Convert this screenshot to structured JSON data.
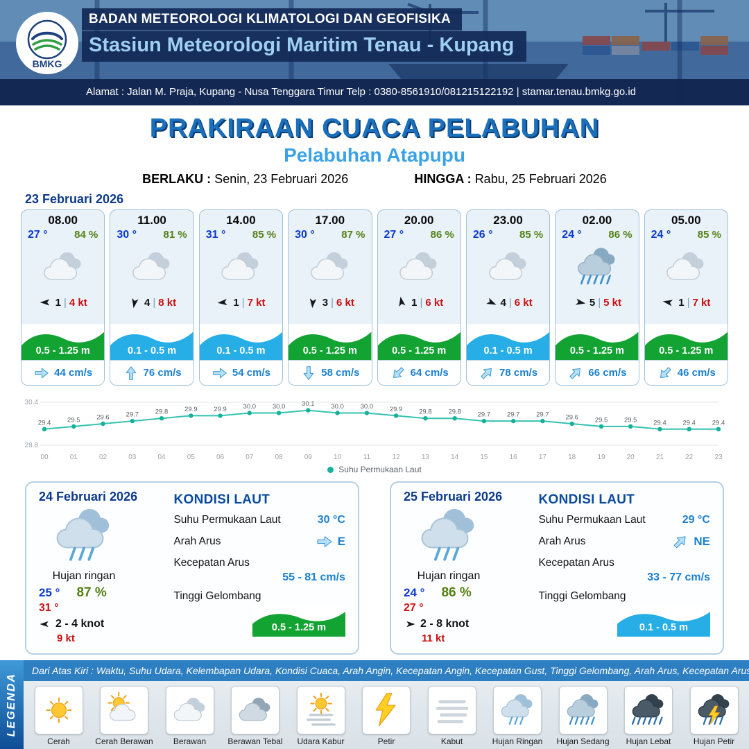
{
  "header": {
    "logo_text": "BMKG",
    "org": "BADAN METEOROLOGI KLIMATOLOGI DAN GEOFISIKA",
    "station": "Stasiun Meteorologi Maritim Tenau - Kupang",
    "address": "Alamat : Jalan M. Praja, Kupang - Nusa Tenggara Timur Telp : 0380-8561910/081215122192  | stamar.tenau.bmkg.go.id"
  },
  "title": {
    "main": "PRAKIRAAN CUACA PELABUHAN",
    "port": "Pelabuhan Atapupu",
    "valid_from_label": "BERLAKU :",
    "valid_from": "Senin, 23 Februari 2026",
    "valid_to_label": "HINGGA :",
    "valid_to": "Rabu, 25 Februari 2026"
  },
  "day1": {
    "date": "23 Februari 2026",
    "cards": [
      {
        "time": "08.00",
        "temp": "27 °",
        "humidity": "84 %",
        "weather_icon": "berawan",
        "wind_deg": 270,
        "wind_speed": "1",
        "gust": "4 kt",
        "wave_height": "0.5 - 1.25 m",
        "wave_color": "#13a332",
        "current_deg": 90,
        "current_speed": "44 cm/s"
      },
      {
        "time": "11.00",
        "temp": "30 °",
        "humidity": "81 %",
        "weather_icon": "berawan",
        "wind_deg": 190,
        "wind_speed": "4",
        "gust": "8 kt",
        "wave_height": "0.1 - 0.5 m",
        "wave_color": "#27aee6",
        "current_deg": 0,
        "current_speed": "76 cm/s"
      },
      {
        "time": "14.00",
        "temp": "31 °",
        "humidity": "85 %",
        "weather_icon": "berawan",
        "wind_deg": 265,
        "wind_speed": "1",
        "gust": "7 kt",
        "wave_height": "0.1 - 0.5 m",
        "wave_color": "#27aee6",
        "current_deg": 90,
        "current_speed": "54 cm/s"
      },
      {
        "time": "17.00",
        "temp": "30 °",
        "humidity": "87 %",
        "weather_icon": "berawan",
        "wind_deg": 185,
        "wind_speed": "3",
        "gust": "6 kt",
        "wave_height": "0.5 - 1.25 m",
        "wave_color": "#13a332",
        "current_deg": 180,
        "current_speed": "58 cm/s"
      },
      {
        "time": "20.00",
        "temp": "27 °",
        "humidity": "86 %",
        "weather_icon": "berawan",
        "wind_deg": 350,
        "wind_speed": "1",
        "gust": "6 kt",
        "wave_height": "0.5 - 1.25 m",
        "wave_color": "#13a332",
        "current_deg": 225,
        "current_speed": "64 cm/s"
      },
      {
        "time": "23.00",
        "temp": "26 °",
        "humidity": "85 %",
        "weather_icon": "berawan",
        "wind_deg": 115,
        "wind_speed": "4",
        "gust": "6 kt",
        "wave_height": "0.1 - 0.5 m",
        "wave_color": "#27aee6",
        "current_deg": 45,
        "current_speed": "78 cm/s"
      },
      {
        "time": "02.00",
        "temp": "24 °",
        "humidity": "86 %",
        "weather_icon": "hujan-sedang",
        "wind_deg": 100,
        "wind_speed": "5",
        "gust": "5 kt",
        "wave_height": "0.5 - 1.25 m",
        "wave_color": "#13a332",
        "current_deg": 45,
        "current_speed": "66 cm/s"
      },
      {
        "time": "05.00",
        "temp": "24 °",
        "humidity": "85 %",
        "weather_icon": "berawan",
        "wind_deg": 280,
        "wind_speed": "1",
        "gust": "7 kt",
        "wave_height": "0.5 - 1.25 m",
        "wave_color": "#13a332",
        "current_deg": 225,
        "current_speed": "46 cm/s"
      }
    ]
  },
  "chart_data": {
    "type": "line",
    "series_name": "Suhu Permukaan Laut",
    "x": [
      "00",
      "01",
      "02",
      "03",
      "04",
      "05",
      "06",
      "07",
      "08",
      "09",
      "10",
      "11",
      "12",
      "13",
      "14",
      "15",
      "16",
      "17",
      "18",
      "19",
      "20",
      "21",
      "22",
      "23"
    ],
    "values": [
      29.4,
      29.5,
      29.6,
      29.7,
      29.8,
      29.9,
      29.9,
      30.0,
      30.0,
      30.1,
      30.0,
      30.0,
      29.9,
      29.8,
      29.8,
      29.7,
      29.7,
      29.7,
      29.6,
      29.5,
      29.5,
      29.4,
      29.4,
      29.4
    ],
    "ylim": [
      28.8,
      30.4
    ],
    "line_color": "#35c2b0",
    "marker_color": "#17b09a",
    "legend_position": "bottom",
    "grid": true,
    "xlabel": "",
    "ylabel": ""
  },
  "sea_labels": {
    "heading": "KONDISI LAUT",
    "sst": "Suhu Permukaan Laut",
    "current_dir": "Arah Arus",
    "current_speed": "Kecepatan Arus",
    "wave": "Tinggi Gelombang"
  },
  "day_summaries": [
    {
      "date": "24 Februari 2026",
      "weather_icon": "hujan-ringan",
      "condition": "Hujan ringan",
      "temp_min": "25 °",
      "humidity": "87 %",
      "temp_max": "31 °",
      "wind_deg": 270,
      "wind_range": "2  - 4 knot",
      "gust": "9 kt",
      "sea": {
        "sst": "30 °C",
        "current_dir": "E",
        "current_deg": 90,
        "current_speed": "55 - 81 cm/s",
        "wave_height": "0.5 - 1.25 m",
        "wave_color": "#13a332"
      }
    },
    {
      "date": "25 Februari 2026",
      "weather_icon": "hujan-ringan",
      "condition": "Hujan ringan",
      "temp_min": "24 °",
      "humidity": "86 %",
      "temp_max": "27 °",
      "wind_deg": 90,
      "wind_range": "2  - 8 knot",
      "gust": "11 kt",
      "sea": {
        "sst": "29 °C",
        "current_dir": "NE",
        "current_deg": 45,
        "current_speed": "33 - 77 cm/s",
        "wave_height": "0.1 - 0.5 m",
        "wave_color": "#27aee6"
      }
    }
  ],
  "legend": {
    "title": "LEGENDA",
    "note": "Dari Atas Kiri : Waktu, Suhu Udara, Kelembapan Udara, Kondisi Cuaca, Arah Angin, Kecepatan Angin, Kecepatan Gust, Tinggi Gelombang, Arah Arus, Kecepatan Arus",
    "items": [
      {
        "icon": "cerah",
        "label": "Cerah"
      },
      {
        "icon": "cerah-berawan",
        "label": "Cerah Berawan"
      },
      {
        "icon": "berawan",
        "label": "Berawan"
      },
      {
        "icon": "berawan-tebal",
        "label": "Berawan Tebal"
      },
      {
        "icon": "udara-kabur",
        "label": "Udara Kabur"
      },
      {
        "icon": "petir",
        "label": "Petir"
      },
      {
        "icon": "kabut",
        "label": "Kabut"
      },
      {
        "icon": "hujan-ringan",
        "label": "Hujan Ringan"
      },
      {
        "icon": "hujan-sedang",
        "label": "Hujan Sedang"
      },
      {
        "icon": "hujan-lebat",
        "label": "Hujan Lebat"
      },
      {
        "icon": "hujan-petir",
        "label": "Hujan Petir"
      }
    ]
  }
}
